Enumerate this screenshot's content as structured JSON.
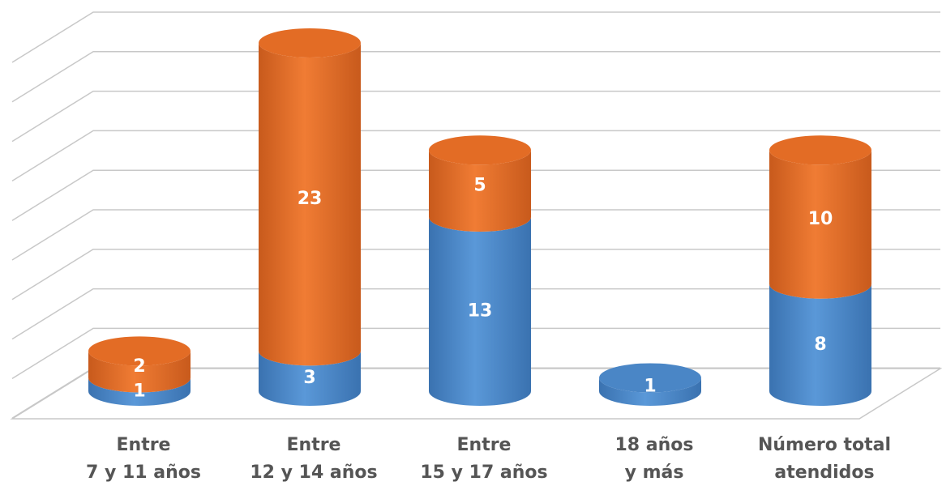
{
  "chart_data": {
    "type": "bar3d-stacked",
    "categories": [
      [
        "Entre",
        "7 y 11 años"
      ],
      [
        "Entre",
        "12 y 14 años"
      ],
      [
        "Entre",
        "15 y 17 años"
      ],
      [
        "18 años",
        "y más"
      ],
      [
        "Número total",
        "atendidos"
      ]
    ],
    "series": [
      {
        "color": "#4a86c6",
        "values": [
          1,
          3,
          13,
          1,
          8
        ]
      },
      {
        "color": "#e36c25",
        "values": [
          2,
          23,
          5,
          null,
          10
        ]
      }
    ]
  }
}
